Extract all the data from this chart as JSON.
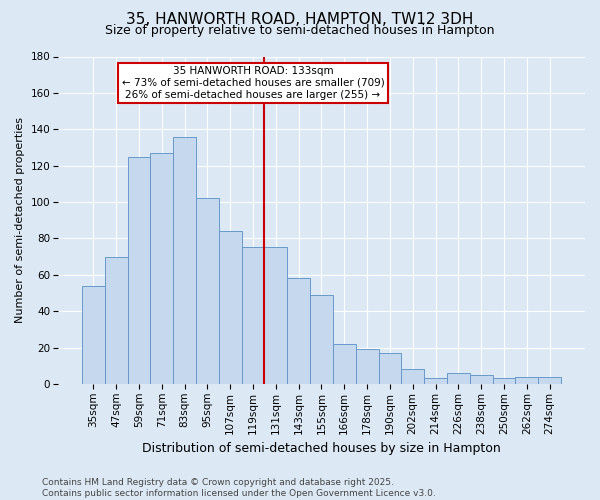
{
  "title1": "35, HANWORTH ROAD, HAMPTON, TW12 3DH",
  "title2": "Size of property relative to semi-detached houses in Hampton",
  "xlabel": "Distribution of semi-detached houses by size in Hampton",
  "ylabel": "Number of semi-detached properties",
  "categories": [
    "35sqm",
    "47sqm",
    "59sqm",
    "71sqm",
    "83sqm",
    "95sqm",
    "107sqm",
    "119sqm",
    "131sqm",
    "143sqm",
    "155sqm",
    "166sqm",
    "178sqm",
    "190sqm",
    "202sqm",
    "214sqm",
    "226sqm",
    "238sqm",
    "250sqm",
    "262sqm",
    "274sqm"
  ],
  "values": [
    54,
    70,
    125,
    127,
    136,
    102,
    84,
    75,
    75,
    58,
    49,
    22,
    19,
    17,
    8,
    3,
    6,
    5,
    3,
    4,
    4
  ],
  "bar_color": "#c5d8ed",
  "bar_edge_color": "#6699cc",
  "vline_index": 8,
  "annotation_line1": "35 HANWORTH ROAD: 133sqm",
  "annotation_line2": "← 73% of semi-detached houses are smaller (709)",
  "annotation_line3": "26% of semi-detached houses are larger (255) →",
  "annotation_box_color": "#ffffff",
  "annotation_box_edge": "#cc0000",
  "vline_color": "#cc0000",
  "bg_color": "#dce9f5",
  "grid_color": "#ffffff",
  "ylim": [
    0,
    180
  ],
  "yticks": [
    0,
    20,
    40,
    60,
    80,
    100,
    120,
    140,
    160,
    180
  ],
  "footer": "Contains HM Land Registry data © Crown copyright and database right 2025.\nContains public sector information licensed under the Open Government Licence v3.0.",
  "title1_fontsize": 11,
  "title2_fontsize": 9,
  "xlabel_fontsize": 9,
  "ylabel_fontsize": 8,
  "tick_fontsize": 7.5,
  "annotation_fontsize": 7.5,
  "footer_fontsize": 6.5
}
